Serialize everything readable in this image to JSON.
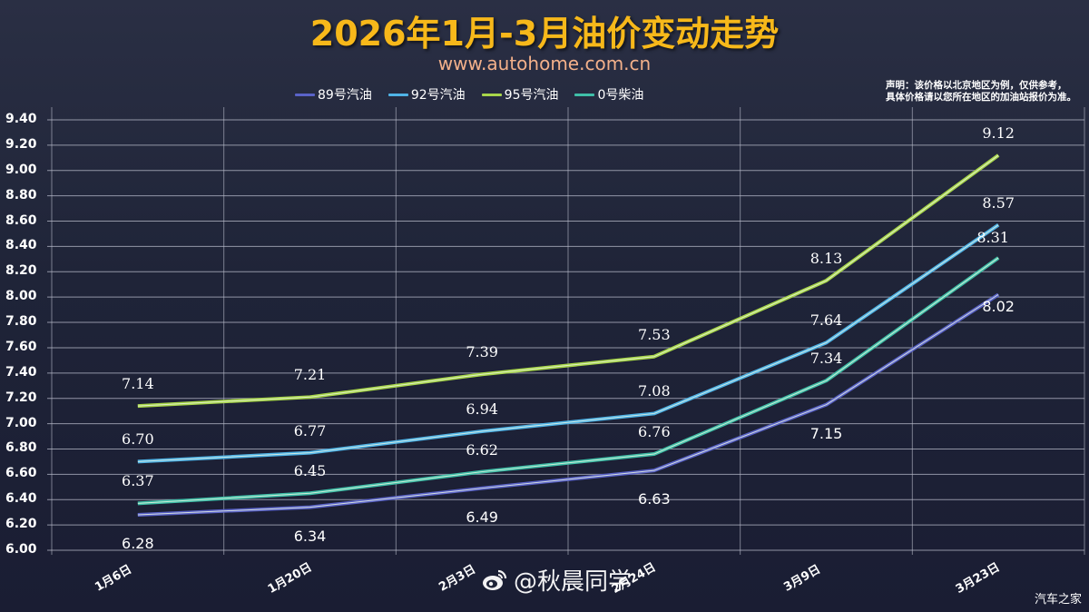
{
  "header": {
    "title": "2026年1月-3月油价变动走势",
    "subtitle": "www.autohome.com.cn"
  },
  "disclaimer": {
    "line1": "声明：该价格以北京地区为例，仅供参考，",
    "line2": "具体价格请以您所在地区的加油站报价为准。"
  },
  "legend": [
    {
      "label": "89号汽油",
      "color": "#5a63c8"
    },
    {
      "label": "92号汽油",
      "color": "#4fb3e6"
    },
    {
      "label": "95号汽油",
      "color": "#a8d64a"
    },
    {
      "label": "0号柴油",
      "color": "#3fbfa8"
    }
  ],
  "watermark": {
    "text": "@秋晨同学",
    "icon": "weibo-icon"
  },
  "brand": "汽车之家",
  "chart_data": {
    "type": "line",
    "title": "2026年1月-3月油价变动走势",
    "subtitle": "www.autohome.com.cn",
    "xlabel": "",
    "ylabel": "",
    "categories": [
      "1月6日",
      "1月20日",
      "2月3日",
      "2月24日",
      "3月9日",
      "3月23日"
    ],
    "yticks": [
      "9.40",
      "9.20",
      "9.00",
      "8.80",
      "8.60",
      "8.40",
      "8.20",
      "8.00",
      "7.80",
      "7.60",
      "7.40",
      "7.20",
      "7.00",
      "6.80",
      "6.60",
      "6.40",
      "6.20",
      "6.00"
    ],
    "ylim": [
      6.0,
      9.4
    ],
    "grid": true,
    "legend_position": "top",
    "series": [
      {
        "name": "89号汽油",
        "color": "#5a63c8",
        "values": [
          6.28,
          6.34,
          6.49,
          6.63,
          7.15,
          8.02
        ]
      },
      {
        "name": "92号汽油",
        "color": "#4fb3e6",
        "values": [
          6.7,
          6.77,
          6.94,
          7.08,
          7.64,
          8.57
        ]
      },
      {
        "name": "95号汽油",
        "color": "#a8d64a",
        "values": [
          7.14,
          7.21,
          7.39,
          7.53,
          8.13,
          9.12
        ]
      },
      {
        "name": "0号柴油",
        "color": "#3fbfa8",
        "values": [
          6.37,
          6.45,
          6.62,
          6.76,
          7.34,
          8.31
        ]
      }
    ],
    "annotations": {
      "note": "声明：该价格以北京地区为例，仅供参考，具体价格请以您所在地区的加油站报价为准。"
    }
  }
}
